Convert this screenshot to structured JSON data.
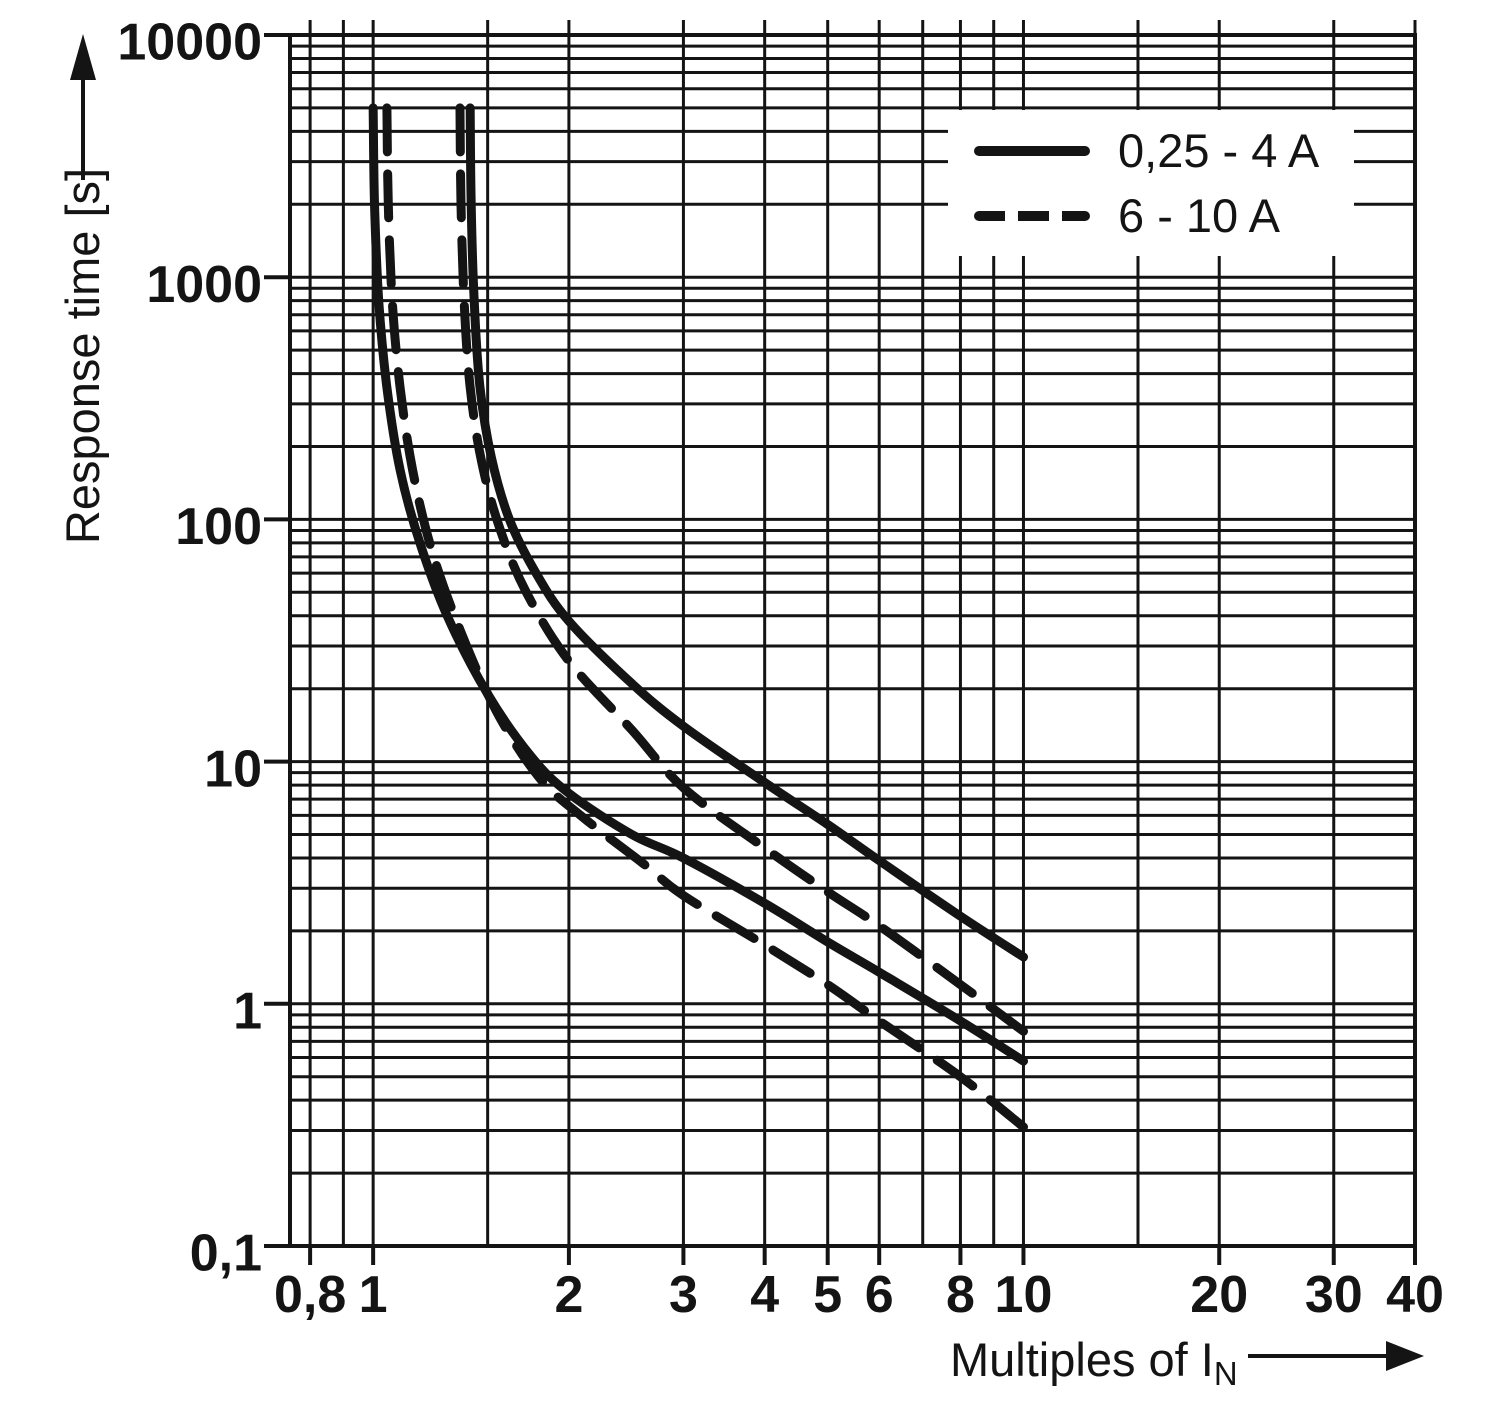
{
  "figure": {
    "background": "#ffffff",
    "ink": "#141414"
  },
  "chart_data": {
    "type": "line",
    "title": "",
    "x_axis": {
      "label": "Multiples of I",
      "label_sub": "N",
      "scale": "log",
      "range": [
        0.745,
        40
      ],
      "gridlines": [
        0.8,
        0.9,
        1,
        1.5,
        2,
        3,
        4,
        5,
        6,
        7,
        8,
        9,
        10,
        15,
        20,
        30,
        40
      ],
      "ticks": [
        {
          "value": 0.8,
          "label": "0,8"
        },
        {
          "value": 1,
          "label": "1"
        },
        {
          "value": 2,
          "label": "2"
        },
        {
          "value": 3,
          "label": "3"
        },
        {
          "value": 4,
          "label": "4"
        },
        {
          "value": 5,
          "label": "5"
        },
        {
          "value": 6,
          "label": "6"
        },
        {
          "value": 8,
          "label": "8"
        },
        {
          "value": 10,
          "label": "10"
        },
        {
          "value": 20,
          "label": "20"
        },
        {
          "value": 30,
          "label": "30"
        },
        {
          "value": 40,
          "label": "40"
        }
      ]
    },
    "y_axis": {
      "label": "Response time [s]",
      "scale": "log",
      "range": [
        0.1,
        10000
      ],
      "minor_gridlines_per_decade": [
        2,
        3,
        4,
        5,
        6,
        7,
        8,
        9
      ],
      "ticks": [
        {
          "value": 10000,
          "label": "10000"
        },
        {
          "value": 1000,
          "label": "1000"
        },
        {
          "value": 100,
          "label": "100"
        },
        {
          "value": 10,
          "label": "10"
        },
        {
          "value": 1,
          "label": "1"
        },
        {
          "value": 0.1,
          "label": "0,1"
        }
      ]
    },
    "legend": {
      "items": [
        {
          "label": "0,25 - 4 A",
          "style": "solid"
        },
        {
          "label": "6 - 10 A",
          "style": "dashed"
        }
      ]
    },
    "series": [
      {
        "name": "0,25 - 4 A upper limit",
        "style": "solid",
        "points": [
          [
            1.41,
            5000
          ],
          [
            1.415,
            2000
          ],
          [
            1.43,
            800
          ],
          [
            1.46,
            350
          ],
          [
            1.52,
            180
          ],
          [
            1.62,
            100
          ],
          [
            1.78,
            60
          ],
          [
            2.0,
            38
          ],
          [
            2.5,
            21
          ],
          [
            3.0,
            14
          ],
          [
            4.0,
            8.2
          ],
          [
            5.0,
            5.5
          ],
          [
            6.0,
            3.9
          ],
          [
            8.0,
            2.3
          ],
          [
            10.0,
            1.56
          ]
        ]
      },
      {
        "name": "0,25 - 4 A lower limit",
        "style": "solid",
        "points": [
          [
            1.0,
            5000
          ],
          [
            1.005,
            2000
          ],
          [
            1.02,
            800
          ],
          [
            1.05,
            350
          ],
          [
            1.1,
            160
          ],
          [
            1.18,
            80
          ],
          [
            1.3,
            40
          ],
          [
            1.5,
            19
          ],
          [
            1.75,
            10.5
          ],
          [
            2.0,
            7.4
          ],
          [
            2.5,
            5.0
          ],
          [
            3.0,
            4.0
          ],
          [
            4.0,
            2.6
          ],
          [
            5.0,
            1.8
          ],
          [
            6.0,
            1.35
          ],
          [
            8.0,
            0.85
          ],
          [
            10.0,
            0.58
          ]
        ]
      },
      {
        "name": "6 - 10 A upper limit",
        "style": "dashed",
        "points": [
          [
            1.36,
            5000
          ],
          [
            1.365,
            2000
          ],
          [
            1.38,
            800
          ],
          [
            1.41,
            350
          ],
          [
            1.47,
            170
          ],
          [
            1.57,
            90
          ],
          [
            1.72,
            50
          ],
          [
            2.0,
            26
          ],
          [
            2.5,
            13.5
          ],
          [
            3.0,
            7.8
          ],
          [
            4.0,
            4.4
          ],
          [
            5.0,
            2.9
          ],
          [
            6.0,
            2.1
          ],
          [
            8.0,
            1.2
          ],
          [
            10.0,
            0.77
          ]
        ]
      },
      {
        "name": "6 - 10 A lower limit",
        "style": "dashed",
        "points": [
          [
            1.05,
            5000
          ],
          [
            1.055,
            2000
          ],
          [
            1.07,
            800
          ],
          [
            1.1,
            350
          ],
          [
            1.15,
            160
          ],
          [
            1.23,
            75
          ],
          [
            1.36,
            35
          ],
          [
            1.55,
            16
          ],
          [
            1.8,
            8.6
          ],
          [
            2.1,
            5.9
          ],
          [
            2.6,
            3.8
          ],
          [
            3.0,
            2.8
          ],
          [
            4.0,
            1.75
          ],
          [
            5.0,
            1.2
          ],
          [
            6.0,
            0.85
          ],
          [
            8.0,
            0.5
          ],
          [
            10.0,
            0.31
          ]
        ]
      }
    ]
  }
}
